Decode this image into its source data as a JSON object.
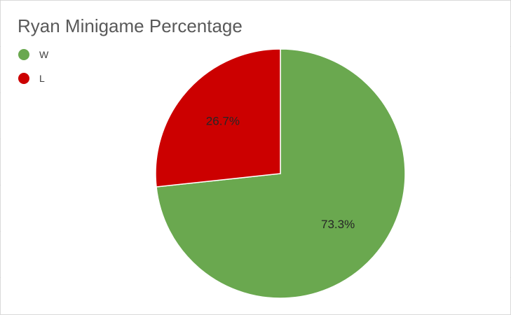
{
  "chart_data": {
    "type": "pie",
    "title": "Ryan Minigame Percentage",
    "categories": [
      "W",
      "L"
    ],
    "values": [
      73.3,
      26.7
    ],
    "labels": [
      "73.3%",
      "26.7%"
    ],
    "colors": [
      "#6aa84f",
      "#cc0000"
    ],
    "legend_placement": "top-left",
    "start": "12 o'clock",
    "direction": "clockwise"
  }
}
